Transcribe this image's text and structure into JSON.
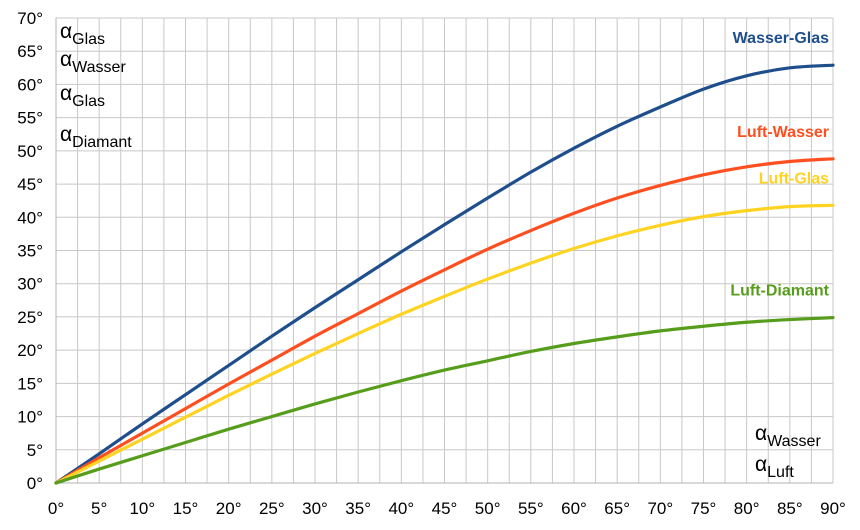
{
  "chart_data": {
    "type": "line",
    "title": "",
    "xlabel": "",
    "ylabel": "",
    "x_ticks": [
      "0°",
      "5°",
      "10°",
      "15°",
      "20°",
      "25°",
      "30°",
      "35°",
      "40°",
      "45°",
      "50°",
      "55°",
      "60°",
      "65°",
      "70°",
      "75°",
      "80°",
      "85°",
      "90°"
    ],
    "y_ticks": [
      "0°",
      "5°",
      "10°",
      "15°",
      "20°",
      "25°",
      "30°",
      "35°",
      "40°",
      "45°",
      "50°",
      "55°",
      "60°",
      "65°",
      "70°"
    ],
    "xlim": [
      0,
      90
    ],
    "ylim": [
      0,
      70
    ],
    "grid": true,
    "x": [
      0,
      5,
      10,
      15,
      20,
      25,
      30,
      35,
      40,
      45,
      50,
      55,
      60,
      65,
      70,
      75,
      80,
      85,
      90
    ],
    "series": [
      {
        "name": "Wasser-Glas",
        "color": "#1f4e8c",
        "end_value": 62.9,
        "values": [
          0,
          4.4,
          8.9,
          13.3,
          17.7,
          22.1,
          26.4,
          30.6,
          34.8,
          38.9,
          42.9,
          46.8,
          50.4,
          53.7,
          56.6,
          59.3,
          61.3,
          62.5,
          62.9
        ]
      },
      {
        "name": "Luft-Wasser",
        "color": "#ff4e1f",
        "end_value": 48.8,
        "values": [
          0,
          3.8,
          7.5,
          11.2,
          14.9,
          18.5,
          22.1,
          25.5,
          28.9,
          32.1,
          35.2,
          38.0,
          40.6,
          42.9,
          44.8,
          46.4,
          47.6,
          48.4,
          48.8
        ]
      },
      {
        "name": "Luft-Glas",
        "color": "#ffd320",
        "end_value": 41.8,
        "values": [
          0,
          3.3,
          6.6,
          9.9,
          13.2,
          16.4,
          19.5,
          22.5,
          25.4,
          28.1,
          30.7,
          33.1,
          35.3,
          37.2,
          38.8,
          40.1,
          41.0,
          41.6,
          41.8
        ]
      },
      {
        "name": "Luft-Diamant",
        "color": "#579d1c",
        "end_value": 24.9,
        "values": [
          0,
          2.1,
          4.1,
          6.1,
          8.1,
          10.0,
          11.9,
          13.7,
          15.4,
          17.0,
          18.4,
          19.8,
          21.0,
          22.0,
          22.9,
          23.6,
          24.2,
          24.6,
          24.9
        ]
      }
    ],
    "annotations": {
      "top_left": [
        {
          "greek": "α",
          "sub": "Glas"
        },
        {
          "greek": "α",
          "sub": "Wasser"
        },
        {
          "greek": "α",
          "sub": "Glas"
        },
        {
          "greek": "α",
          "sub": "Diamant"
        }
      ],
      "bottom_right": [
        {
          "greek": "α",
          "sub": "Wasser"
        },
        {
          "greek": "α",
          "sub": "Luft"
        }
      ]
    }
  }
}
